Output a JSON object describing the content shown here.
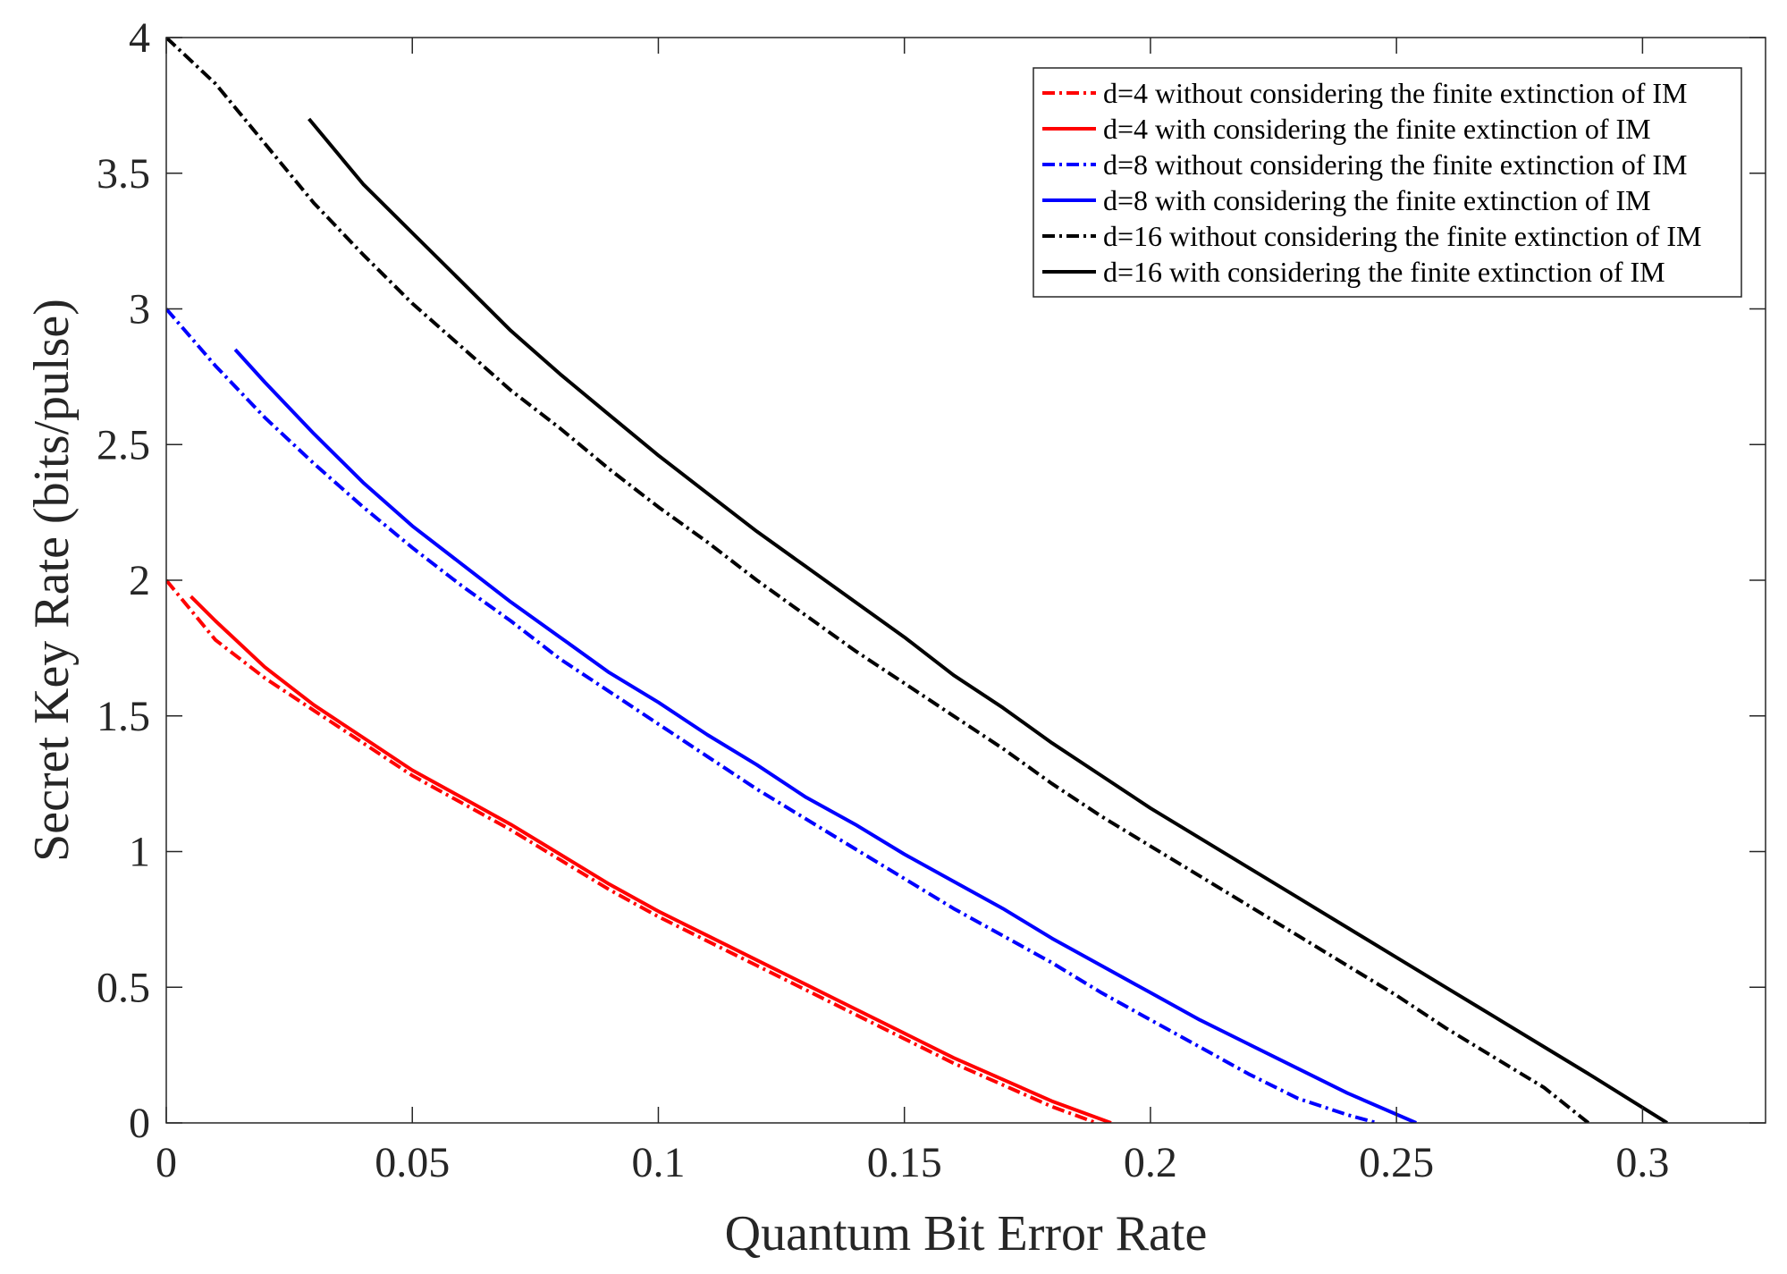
{
  "chart_data": {
    "type": "line",
    "title": "",
    "xlabel": "Quantum Bit Error Rate",
    "ylabel": "Secret Key Rate (bits/pulse)",
    "xlim": [
      0,
      0.325
    ],
    "ylim": [
      0,
      4
    ],
    "xticks": [
      0,
      0.05,
      0.1,
      0.15,
      0.2,
      0.25,
      0.3
    ],
    "xtick_labels": [
      "0",
      "0.05",
      "0.1",
      "0.15",
      "0.2",
      "0.25",
      "0.3"
    ],
    "yticks": [
      0,
      0.5,
      1,
      1.5,
      2,
      2.5,
      3,
      3.5,
      4
    ],
    "ytick_labels": [
      "0",
      "0.5",
      "1",
      "1.5",
      "2",
      "2.5",
      "3",
      "3.5",
      "4"
    ],
    "grid": false,
    "legend_position": "top-right",
    "series": [
      {
        "name": "d=4 without considering the finite extinction of IM",
        "color": "#ff0000",
        "style": "dashdot",
        "x": [
          0,
          0.01,
          0.02,
          0.03,
          0.04,
          0.05,
          0.06,
          0.07,
          0.08,
          0.09,
          0.1,
          0.11,
          0.12,
          0.13,
          0.14,
          0.15,
          0.16,
          0.17,
          0.18,
          0.189
        ],
        "y": [
          2.0,
          1.78,
          1.64,
          1.52,
          1.4,
          1.28,
          1.18,
          1.08,
          0.97,
          0.86,
          0.76,
          0.67,
          0.58,
          0.49,
          0.4,
          0.31,
          0.22,
          0.14,
          0.06,
          0.0
        ]
      },
      {
        "name": "d=4 with considering the finite extinction of IM",
        "color": "#ff0000",
        "style": "solid",
        "x": [
          0.005,
          0.01,
          0.02,
          0.03,
          0.04,
          0.05,
          0.06,
          0.07,
          0.08,
          0.09,
          0.1,
          0.11,
          0.12,
          0.13,
          0.14,
          0.15,
          0.16,
          0.17,
          0.18,
          0.192
        ],
        "y": [
          1.94,
          1.85,
          1.68,
          1.54,
          1.42,
          1.3,
          1.2,
          1.1,
          0.99,
          0.88,
          0.78,
          0.69,
          0.6,
          0.51,
          0.42,
          0.33,
          0.24,
          0.16,
          0.08,
          0.0
        ]
      },
      {
        "name": "d=8 without considering the finite extinction of IM",
        "color": "#0000ff",
        "style": "dashdot",
        "x": [
          0,
          0.01,
          0.02,
          0.03,
          0.04,
          0.05,
          0.06,
          0.07,
          0.08,
          0.09,
          0.1,
          0.11,
          0.12,
          0.13,
          0.14,
          0.15,
          0.16,
          0.17,
          0.18,
          0.19,
          0.2,
          0.21,
          0.22,
          0.23,
          0.24,
          0.246
        ],
        "y": [
          3.0,
          2.79,
          2.6,
          2.43,
          2.27,
          2.12,
          1.98,
          1.85,
          1.71,
          1.59,
          1.47,
          1.35,
          1.23,
          1.12,
          1.01,
          0.9,
          0.79,
          0.69,
          0.59,
          0.48,
          0.38,
          0.28,
          0.18,
          0.09,
          0.03,
          0.0
        ]
      },
      {
        "name": "d=8 with considering the finite extinction of IM",
        "color": "#0000ff",
        "style": "solid",
        "x": [
          0.014,
          0.02,
          0.03,
          0.04,
          0.05,
          0.06,
          0.07,
          0.08,
          0.09,
          0.1,
          0.11,
          0.12,
          0.13,
          0.14,
          0.15,
          0.16,
          0.17,
          0.18,
          0.19,
          0.2,
          0.21,
          0.22,
          0.23,
          0.24,
          0.254
        ],
        "y": [
          2.85,
          2.73,
          2.54,
          2.36,
          2.2,
          2.06,
          1.92,
          1.79,
          1.66,
          1.55,
          1.43,
          1.32,
          1.2,
          1.1,
          0.99,
          0.89,
          0.79,
          0.68,
          0.58,
          0.48,
          0.38,
          0.29,
          0.2,
          0.11,
          0.0
        ]
      },
      {
        "name": "d=16 without considering the finite extinction of IM",
        "color": "#000000",
        "style": "dashdot",
        "x": [
          0,
          0.01,
          0.02,
          0.03,
          0.04,
          0.05,
          0.06,
          0.07,
          0.08,
          0.09,
          0.1,
          0.11,
          0.12,
          0.13,
          0.14,
          0.15,
          0.16,
          0.17,
          0.18,
          0.19,
          0.2,
          0.21,
          0.22,
          0.23,
          0.24,
          0.25,
          0.26,
          0.27,
          0.28,
          0.289
        ],
        "y": [
          4.0,
          3.83,
          3.61,
          3.39,
          3.2,
          3.02,
          2.86,
          2.7,
          2.56,
          2.41,
          2.27,
          2.14,
          2.0,
          1.87,
          1.74,
          1.62,
          1.5,
          1.38,
          1.25,
          1.13,
          1.02,
          0.91,
          0.8,
          0.69,
          0.58,
          0.47,
          0.35,
          0.24,
          0.13,
          0.0
        ]
      },
      {
        "name": "d=16 with considering the finite extinction of IM",
        "color": "#000000",
        "style": "solid",
        "x": [
          0.029,
          0.04,
          0.05,
          0.06,
          0.07,
          0.08,
          0.09,
          0.1,
          0.11,
          0.12,
          0.13,
          0.14,
          0.15,
          0.16,
          0.17,
          0.18,
          0.19,
          0.2,
          0.21,
          0.22,
          0.23,
          0.24,
          0.25,
          0.26,
          0.27,
          0.28,
          0.29,
          0.305
        ],
        "y": [
          3.7,
          3.46,
          3.28,
          3.1,
          2.92,
          2.76,
          2.61,
          2.46,
          2.32,
          2.18,
          2.05,
          1.92,
          1.79,
          1.65,
          1.53,
          1.4,
          1.28,
          1.16,
          1.05,
          0.94,
          0.83,
          0.72,
          0.61,
          0.5,
          0.39,
          0.28,
          0.17,
          0.0
        ]
      }
    ]
  }
}
